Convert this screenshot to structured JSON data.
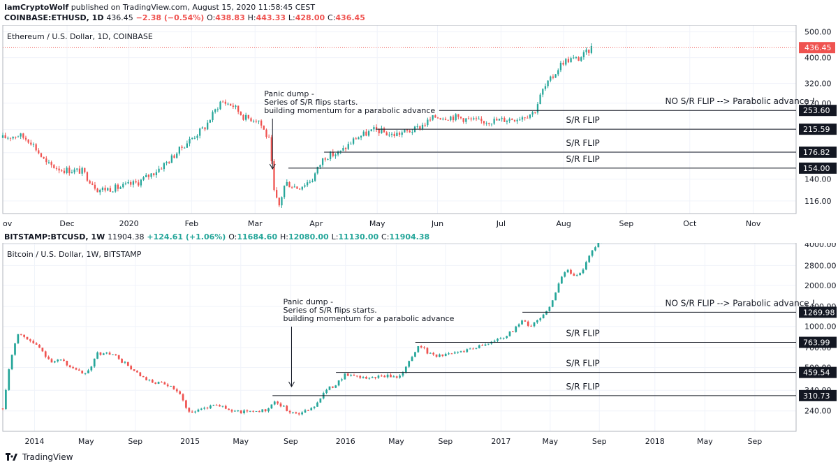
{
  "header": {
    "author": "IamCryptoWolf",
    "published": "published on TradingView.com, August 15, 2020 11:58:45 CEST"
  },
  "colors": {
    "up": "#26a69a",
    "down": "#ef5350",
    "line": "#131722",
    "grid": "#f0f3fa",
    "price_line": "#ef5350"
  },
  "chart_data": [
    {
      "type": "candlestick",
      "symbol_line": {
        "symbol": "COINBASE:ETHUSD, 1D",
        "last": "436.45",
        "change": "−2.38 (−0.54%)",
        "open": "438.83",
        "high": "443.33",
        "low": "428.00",
        "close": "436.45"
      },
      "title": "Ethereum / U.S. Dollar, 1D, COINBASE",
      "scale": "log",
      "ylim": [
        104,
        530
      ],
      "y_ticks": [
        116.0,
        140.0,
        176.0,
        215.0,
        270.0,
        320.0,
        400.0,
        500.0
      ],
      "y_tick_labels": [
        "116.00",
        "140.00",
        "176.00",
        "215.00",
        "270.00",
        "320.00",
        "400.00",
        "500.00"
      ],
      "x_ticks": [
        "ov",
        "Dec",
        "2020",
        "Feb",
        "Mar",
        "Apr",
        "May",
        "Jun",
        "Jul",
        "Aug",
        "Sep",
        "Oct",
        "Nov"
      ],
      "x_tick_pos": [
        0.0,
        0.081,
        0.159,
        0.238,
        0.318,
        0.395,
        0.472,
        0.548,
        0.628,
        0.707,
        0.786,
        0.866,
        0.946
      ],
      "last_price_label": "436.45",
      "path": [
        [
          0.0,
          200
        ],
        [
          0.02,
          205
        ],
        [
          0.035,
          195
        ],
        [
          0.055,
          160
        ],
        [
          0.075,
          152
        ],
        [
          0.1,
          150
        ],
        [
          0.12,
          128
        ],
        [
          0.145,
          130
        ],
        [
          0.17,
          136
        ],
        [
          0.19,
          148
        ],
        [
          0.21,
          165
        ],
        [
          0.23,
          190
        ],
        [
          0.255,
          220
        ],
        [
          0.275,
          275
        ],
        [
          0.29,
          265
        ],
        [
          0.305,
          238
        ],
        [
          0.322,
          235
        ],
        [
          0.336,
          195
        ],
        [
          0.342,
          125
        ],
        [
          0.348,
          110
        ],
        [
          0.356,
          136
        ],
        [
          0.372,
          130
        ],
        [
          0.39,
          140
        ],
        [
          0.405,
          170
        ],
        [
          0.425,
          176
        ],
        [
          0.445,
          200
        ],
        [
          0.47,
          215
        ],
        [
          0.49,
          205
        ],
        [
          0.52,
          215
        ],
        [
          0.545,
          240
        ],
        [
          0.57,
          240
        ],
        [
          0.6,
          230
        ],
        [
          0.625,
          233
        ],
        [
          0.65,
          238
        ],
        [
          0.67,
          250
        ],
        [
          0.68,
          300
        ],
        [
          0.695,
          345
        ],
        [
          0.705,
          385
        ],
        [
          0.715,
          395
        ],
        [
          0.725,
          395
        ],
        [
          0.735,
          415
        ],
        [
          0.742,
          436
        ]
      ],
      "levels": [
        {
          "value": 253.6,
          "label": "253.60",
          "x_start": 0.55,
          "note": "NO S/R FLIP --> Parabolic advance !"
        },
        {
          "value": 215.59,
          "label": "215.59",
          "x_start": 0.47,
          "note": "S/R FLIP"
        },
        {
          "value": 176.82,
          "label": "176.82",
          "x_start": 0.405,
          "note": "S/R FLIP"
        },
        {
          "value": 154.0,
          "label": "154.00",
          "x_start": 0.36,
          "note": "S/R FLIP"
        }
      ],
      "annotation": {
        "lines": [
          "Panic dump -",
          "Series of S/R flips starts.",
          "building momentum for a parabolic advance"
        ],
        "x": 0.34
      }
    },
    {
      "type": "candlestick",
      "symbol_line": {
        "symbol": "BITSTAMP:BTCUSD, 1W",
        "last": "11904.38",
        "change": "+124.61 (+1.06%)",
        "open": "11684.60",
        "high": "12080.00",
        "low": "11130.00",
        "close": "11904.38"
      },
      "title": "Bitcoin / U.S. Dollar, 1W, BITSTAMP",
      "scale": "log",
      "ylim": [
        170,
        4100
      ],
      "y_ticks": [
        240.0,
        340.0,
        500.0,
        700.0,
        1000.0,
        1400.0,
        2000.0,
        2800.0,
        4000.0
      ],
      "y_tick_labels": [
        "240.00",
        "340.00",
        "500.00",
        "700.00",
        "1000.00",
        "1400.00",
        "2000.00",
        "2800.00",
        "4000.00"
      ],
      "x_ticks": [
        "2014",
        "May",
        "Sep",
        "2015",
        "May",
        "Sep",
        "2016",
        "May",
        "Sep",
        "2017",
        "May",
        "Sep",
        "2018",
        "May",
        "Sep"
      ],
      "x_tick_pos": [
        0.04,
        0.105,
        0.167,
        0.236,
        0.3,
        0.363,
        0.432,
        0.496,
        0.558,
        0.628,
        0.69,
        0.752,
        0.822,
        0.885,
        0.948
      ],
      "path": [
        [
          0.0,
          250
        ],
        [
          0.008,
          500
        ],
        [
          0.018,
          900
        ],
        [
          0.03,
          820
        ],
        [
          0.045,
          700
        ],
        [
          0.06,
          560
        ],
        [
          0.075,
          560
        ],
        [
          0.09,
          480
        ],
        [
          0.105,
          440
        ],
        [
          0.12,
          640
        ],
        [
          0.14,
          620
        ],
        [
          0.16,
          500
        ],
        [
          0.18,
          400
        ],
        [
          0.2,
          380
        ],
        [
          0.22,
          340
        ],
        [
          0.236,
          230
        ],
        [
          0.25,
          250
        ],
        [
          0.27,
          270
        ],
        [
          0.29,
          235
        ],
        [
          0.31,
          240
        ],
        [
          0.33,
          240
        ],
        [
          0.345,
          280
        ],
        [
          0.36,
          240
        ],
        [
          0.375,
          230
        ],
        [
          0.39,
          250
        ],
        [
          0.405,
          330
        ],
        [
          0.42,
          380
        ],
        [
          0.432,
          450
        ],
        [
          0.445,
          420
        ],
        [
          0.46,
          420
        ],
        [
          0.48,
          430
        ],
        [
          0.5,
          430
        ],
        [
          0.515,
          580
        ],
        [
          0.525,
          750
        ],
        [
          0.535,
          640
        ],
        [
          0.55,
          610
        ],
        [
          0.57,
          640
        ],
        [
          0.6,
          720
        ],
        [
          0.62,
          780
        ],
        [
          0.64,
          900
        ],
        [
          0.655,
          1100
        ],
        [
          0.665,
          1000
        ],
        [
          0.68,
          1200
        ],
        [
          0.69,
          1400
        ],
        [
          0.7,
          2000
        ],
        [
          0.71,
          2600
        ],
        [
          0.72,
          2400
        ],
        [
          0.73,
          2500
        ],
        [
          0.74,
          3300
        ],
        [
          0.75,
          4100
        ],
        [
          0.76,
          4300
        ],
        [
          0.77,
          4400
        ]
      ],
      "levels": [
        {
          "value": 1269.98,
          "label": "1269.98",
          "x_start": 0.655,
          "note": "NO S/R FLIP --> Parabolic advance !"
        },
        {
          "value": 763.99,
          "label": "763.99",
          "x_start": 0.52,
          "note": "S/R FLIP"
        },
        {
          "value": 459.54,
          "label": "459.54",
          "x_start": 0.42,
          "note": "S/R FLIP"
        },
        {
          "value": 310.73,
          "label": "310.73",
          "x_start": 0.34,
          "note": "S/R FLIP"
        }
      ],
      "annotation": {
        "lines": [
          "Panic dump -",
          "Series of S/R flips starts.",
          "building momentum for a parabolic advance"
        ],
        "x": 0.364
      }
    }
  ],
  "footer": {
    "brand": "TradingView"
  }
}
